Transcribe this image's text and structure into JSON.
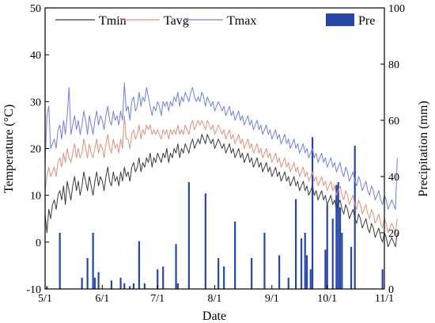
{
  "chart_data": {
    "type": "line+bar",
    "xlabel": "Date",
    "ylabel_left": "Temperature (°C)",
    "ylabel_right": "Precipitation (mm)",
    "ylim_left": [
      -10,
      50
    ],
    "ylim_right": [
      0,
      100
    ],
    "yticks_left": [
      -10,
      0,
      10,
      20,
      30,
      40,
      50
    ],
    "yticks_right": [
      0,
      20,
      40,
      60,
      80,
      100
    ],
    "date_range": [
      "05-01",
      "11-01"
    ],
    "x_ticks": [
      {
        "date": "05-01",
        "label": "5/1"
      },
      {
        "date": "06-01",
        "label": "6/1"
      },
      {
        "date": "07-01",
        "label": "7/1"
      },
      {
        "date": "08-01",
        "label": "8/1"
      },
      {
        "date": "09-01",
        "label": "9/1"
      },
      {
        "date": "10-01",
        "label": "10/1"
      },
      {
        "date": "11-01",
        "label": "11/1"
      }
    ],
    "legend": [
      "Tmin",
      "Tavg",
      "Tmax",
      "Pre"
    ],
    "series": [
      {
        "name": "Tmin",
        "color": "#3a3a3a",
        "kind": "line",
        "axis": "left",
        "key": "tmin"
      },
      {
        "name": "Tavg",
        "color": "#e0907e",
        "kind": "line",
        "axis": "left",
        "key": "tavg"
      },
      {
        "name": "Tmax",
        "color": "#6f7fe0",
        "kind": "line",
        "axis": "left",
        "key": "tmax"
      },
      {
        "name": "Pre",
        "color": "#2747a6",
        "kind": "bar",
        "axis": "right",
        "key": "pre"
      }
    ],
    "daily": {
      "start_date": "05-01",
      "tmin": [
        6,
        2,
        7,
        5,
        8,
        9,
        7,
        10,
        11,
        9,
        12,
        8,
        13,
        11,
        9,
        12,
        14,
        11,
        13,
        10,
        12,
        15,
        13,
        11,
        14,
        12,
        10,
        13,
        15,
        12,
        14,
        13,
        11,
        14,
        16,
        13,
        12,
        15,
        13,
        14,
        12,
        15,
        13,
        16,
        14,
        15,
        13,
        16,
        17,
        15,
        16,
        18,
        15,
        17,
        16,
        18,
        17,
        19,
        16,
        18,
        17,
        19,
        18,
        17,
        19,
        18,
        20,
        17,
        19,
        18,
        20,
        19,
        21,
        18,
        20,
        19,
        21,
        20,
        19,
        21,
        22,
        20,
        21,
        22,
        21,
        23,
        22,
        21,
        23,
        22,
        21,
        22,
        20,
        21,
        22,
        21,
        20,
        21,
        19,
        20,
        21,
        19,
        20,
        18,
        19,
        20,
        18,
        19,
        17,
        18,
        19,
        17,
        18,
        16,
        17,
        18,
        16,
        17,
        15,
        16,
        17,
        15,
        16,
        14,
        15,
        16,
        14,
        15,
        13,
        14,
        15,
        13,
        14,
        12,
        13,
        14,
        12,
        13,
        11,
        12,
        13,
        11,
        12,
        10,
        11,
        12,
        10,
        11,
        9,
        10,
        11,
        9,
        10,
        8,
        9,
        10,
        8,
        9,
        7,
        8,
        9,
        7,
        6,
        8,
        7,
        5,
        6,
        7,
        5,
        4,
        6,
        5,
        3,
        4,
        5,
        3,
        2,
        4,
        3,
        1,
        2,
        3,
        1,
        0,
        2,
        1,
        -1,
        0,
        1,
        0,
        -1,
        2
      ],
      "tavg": [
        11,
        14,
        16,
        14,
        15,
        16,
        14,
        17,
        18,
        16,
        19,
        17,
        20,
        18,
        17,
        19,
        21,
        18,
        20,
        18,
        19,
        22,
        20,
        18,
        21,
        19,
        18,
        20,
        22,
        19,
        21,
        20,
        18,
        21,
        23,
        20,
        19,
        22,
        20,
        21,
        19,
        22,
        20,
        27,
        22,
        22,
        20,
        23,
        24,
        22,
        23,
        25,
        22,
        24,
        23,
        25,
        24,
        25,
        23,
        24,
        23,
        24,
        23,
        22,
        24,
        23,
        24,
        22,
        24,
        23,
        24,
        23,
        25,
        23,
        24,
        23,
        25,
        24,
        23,
        25,
        26,
        24,
        25,
        26,
        25,
        26,
        25,
        24,
        26,
        25,
        24,
        25,
        23,
        24,
        25,
        24,
        23,
        24,
        22,
        23,
        24,
        22,
        23,
        21,
        22,
        23,
        21,
        22,
        20,
        21,
        22,
        20,
        21,
        19,
        20,
        21,
        19,
        20,
        18,
        19,
        20,
        18,
        19,
        17,
        18,
        19,
        17,
        18,
        16,
        17,
        18,
        16,
        17,
        15,
        16,
        17,
        15,
        16,
        14,
        15,
        16,
        14,
        15,
        13,
        14,
        15,
        13,
        14,
        12,
        13,
        14,
        12,
        13,
        11,
        12,
        13,
        11,
        12,
        10,
        11,
        12,
        10,
        9,
        11,
        10,
        8,
        9,
        10,
        8,
        7,
        9,
        8,
        6,
        7,
        8,
        6,
        5,
        7,
        6,
        4,
        5,
        6,
        4,
        3,
        5,
        4,
        2,
        3,
        4,
        3,
        2,
        5
      ],
      "tmax": [
        17,
        27,
        29,
        20,
        21,
        22,
        20,
        24,
        25,
        22,
        26,
        23,
        27,
        33,
        23,
        25,
        27,
        24,
        26,
        23,
        25,
        28,
        26,
        23,
        27,
        25,
        23,
        26,
        28,
        25,
        27,
        26,
        24,
        27,
        29,
        26,
        25,
        28,
        26,
        27,
        25,
        28,
        26,
        34,
        28,
        29,
        26,
        30,
        31,
        28,
        29,
        32,
        29,
        31,
        30,
        33,
        31,
        29,
        27,
        29,
        28,
        30,
        29,
        27,
        30,
        29,
        30,
        28,
        30,
        29,
        31,
        30,
        32,
        29,
        31,
        30,
        32,
        31,
        30,
        32,
        33,
        31,
        30,
        31,
        30,
        32,
        31,
        29,
        31,
        30,
        29,
        30,
        28,
        29,
        30,
        29,
        28,
        29,
        27,
        28,
        29,
        27,
        28,
        26,
        27,
        28,
        26,
        27,
        25,
        26,
        27,
        25,
        26,
        24,
        25,
        26,
        24,
        25,
        23,
        24,
        25,
        23,
        24,
        22,
        23,
        24,
        22,
        23,
        21,
        22,
        23,
        21,
        22,
        20,
        21,
        22,
        20,
        21,
        19,
        20,
        21,
        19,
        20,
        18,
        19,
        20,
        18,
        19,
        17,
        18,
        19,
        17,
        18,
        16,
        17,
        18,
        16,
        17,
        15,
        16,
        17,
        15,
        14,
        16,
        15,
        13,
        14,
        15,
        13,
        12,
        14,
        13,
        11,
        12,
        13,
        11,
        10,
        12,
        11,
        9,
        10,
        11,
        9,
        8,
        10,
        9,
        7,
        8,
        9,
        8,
        7,
        18
      ],
      "pre": [
        0,
        1,
        0,
        0,
        0,
        0,
        0,
        0,
        20,
        0,
        0,
        0,
        0,
        0,
        0,
        0,
        0,
        0,
        0,
        0,
        4,
        0,
        0,
        11,
        0,
        0,
        20,
        4,
        0,
        6,
        0,
        0,
        0,
        0,
        0,
        0,
        3,
        0,
        0,
        0,
        0,
        4,
        0,
        2,
        0,
        0,
        1,
        0,
        2,
        0,
        0,
        17,
        0,
        0,
        2,
        0,
        0,
        0,
        0,
        0,
        0,
        7,
        0,
        0,
        8,
        0,
        0,
        0,
        0,
        0,
        0,
        16,
        2,
        0,
        0,
        0,
        0,
        0,
        38,
        0,
        0,
        0,
        0,
        0,
        0,
        0,
        0,
        34,
        0,
        0,
        0,
        0,
        0,
        0,
        11,
        0,
        0,
        8,
        0,
        0,
        0,
        0,
        0,
        24,
        0,
        0,
        0,
        0,
        0,
        0,
        0,
        0,
        11,
        0,
        0,
        0,
        0,
        0,
        0,
        20,
        0,
        0,
        0,
        0,
        0,
        0,
        0,
        12,
        0,
        0,
        0,
        0,
        4,
        0,
        0,
        0,
        32,
        0,
        0,
        18,
        0,
        20,
        12,
        0,
        7,
        54,
        0,
        0,
        0,
        0,
        0,
        0,
        14,
        30,
        0,
        0,
        25,
        0,
        37,
        38,
        29,
        20,
        0,
        0,
        0,
        0,
        15,
        0,
        51,
        0,
        0,
        0,
        0,
        0,
        0,
        0,
        0,
        0,
        0,
        0,
        0,
        0,
        0,
        7,
        0,
        0,
        0,
        0,
        0,
        0,
        0,
        0,
        0,
        0,
        0,
        0,
        0,
        0,
        0,
        0,
        0,
        0
      ]
    }
  }
}
